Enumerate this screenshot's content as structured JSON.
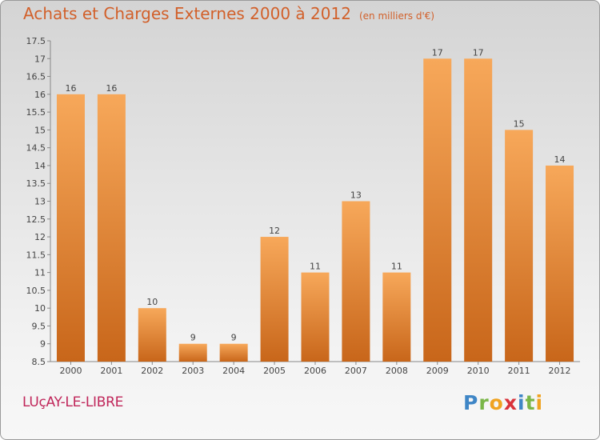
{
  "header": {
    "title": "Achats et Charges Externes 2000 à 2012",
    "subtitle": "(en milliers d'€)"
  },
  "footer": {
    "commune": "LUçAY-LE-LIBRE",
    "logo_text": "Proxiti"
  },
  "colors": {
    "bar_top": "#f7a85a",
    "bar_bottom": "#c8661a",
    "title": "#d2602a",
    "commune": "#c0265a"
  },
  "chart_data": {
    "type": "bar",
    "categories": [
      "2000",
      "2001",
      "2002",
      "2003",
      "2004",
      "2005",
      "2006",
      "2007",
      "2008",
      "2009",
      "2010",
      "2011",
      "2012"
    ],
    "values": [
      16,
      16,
      10,
      9,
      9,
      12,
      11,
      13,
      11,
      17,
      17,
      15,
      14
    ],
    "data_labels": [
      "16",
      "16",
      "10",
      "9",
      "9",
      "12",
      "11",
      "13",
      "11",
      "17",
      "17",
      "15",
      "14"
    ],
    "title": "Achats et Charges Externes 2000 à 2012",
    "subtitle": "(en milliers d'€)",
    "xlabel": "",
    "ylabel": "",
    "ylim": [
      8.5,
      17.5
    ],
    "yticks": [
      8.5,
      9,
      9.5,
      10,
      10.5,
      11,
      11.5,
      12,
      12.5,
      13,
      13.5,
      14,
      14.5,
      15,
      15.5,
      16,
      16.5,
      17,
      17.5
    ],
    "ytick_labels": [
      "8.5",
      "9",
      "9.5",
      "10",
      "10.5",
      "11",
      "11.5",
      "12",
      "12.5",
      "13",
      "13.5",
      "14",
      "14.5",
      "15",
      "15.5",
      "16",
      "16.5",
      "17",
      "17.5"
    ],
    "grid": false,
    "legend": "none"
  }
}
